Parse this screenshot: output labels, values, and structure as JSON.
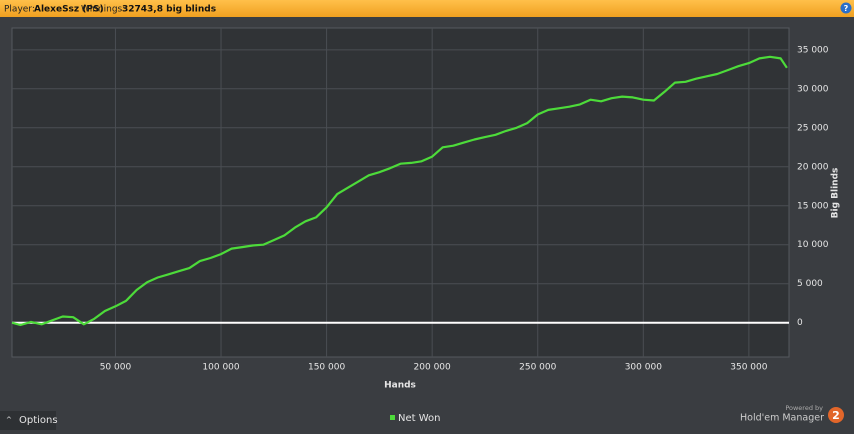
{
  "header": {
    "player_label": "Player:",
    "player": "AlexeSsz (PS)",
    "winnings_label": "Winnings:",
    "winnings": "32743,8 big blinds",
    "help": "?"
  },
  "footer": {
    "options": "Options",
    "powered_by": "Powered by",
    "product": "Hold'em Manager",
    "version": "2"
  },
  "chart_data": {
    "type": "line",
    "x_label": "Hands",
    "y_label": "Big Blinds",
    "x": [
      1000,
      5000,
      10000,
      15000,
      20000,
      25000,
      30000,
      35000,
      40000,
      45000,
      50000,
      55000,
      60000,
      65000,
      70000,
      75000,
      80000,
      85000,
      90000,
      95000,
      100000,
      105000,
      110000,
      115000,
      120000,
      125000,
      130000,
      135000,
      140000,
      145000,
      150000,
      155000,
      160000,
      165000,
      170000,
      175000,
      180000,
      185000,
      190000,
      195000,
      200000,
      205000,
      210000,
      215000,
      220000,
      225000,
      230000,
      235000,
      240000,
      245000,
      250000,
      255000,
      260000,
      265000,
      270000,
      275000,
      280000,
      285000,
      290000,
      295000,
      300000,
      305000,
      310000,
      315000,
      320000,
      325000,
      330000,
      335000,
      340000,
      345000,
      350000,
      355000,
      360000,
      365000,
      368000
    ],
    "series": [
      {
        "name": "Net Won",
        "color": "#4ddb3a",
        "values": [
          0,
          -300,
          100,
          -200,
          300,
          800,
          700,
          -200,
          500,
          1500,
          2100,
          2800,
          4200,
          5200,
          5800,
          6200,
          6600,
          7000,
          7900,
          8300,
          8800,
          9500,
          9700,
          9900,
          10000,
          10600,
          11200,
          12200,
          13000,
          13500,
          14800,
          16500,
          17300,
          18100,
          18900,
          19300,
          19800,
          20400,
          20500,
          20700,
          21300,
          22500,
          22700,
          23100,
          23500,
          23800,
          24100,
          24600,
          25000,
          25600,
          26700,
          27300,
          27500,
          27700,
          28000,
          28600,
          28400,
          28800,
          29000,
          28900,
          28600,
          28500,
          29600,
          30800,
          30900,
          31300,
          31600,
          31900,
          32400,
          32900,
          33300,
          33900,
          34100,
          33900,
          32700
        ]
      }
    ],
    "xlim": [
      1000,
      369000
    ],
    "xticks": [
      {
        "value": 50000,
        "label": "50 000"
      },
      {
        "value": 100000,
        "label": "100 000"
      },
      {
        "value": 150000,
        "label": "150 000"
      },
      {
        "value": 200000,
        "label": "200 000"
      },
      {
        "value": 250000,
        "label": "250 000"
      },
      {
        "value": 300000,
        "label": "300 000"
      },
      {
        "value": 350000,
        "label": "350 000"
      }
    ],
    "ylim": [
      -4400,
      37800
    ],
    "yticks": [
      0,
      {
        "value": 5000,
        "label": "5 000"
      },
      {
        "value": 10000,
        "label": "10 000"
      },
      {
        "value": 15000,
        "label": "15 000"
      },
      {
        "value": 20000,
        "label": "20 000"
      },
      {
        "value": 25000,
        "label": "25 000"
      },
      {
        "value": 30000,
        "label": "30 000"
      },
      {
        "value": 35000,
        "label": "35 000"
      }
    ],
    "grid": true
  }
}
